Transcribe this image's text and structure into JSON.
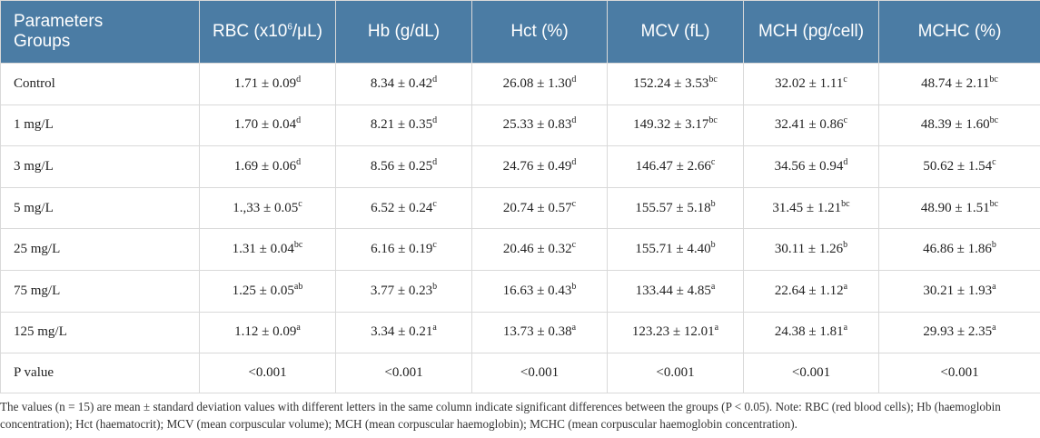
{
  "header": {
    "first_col_line1": "Parameters",
    "first_col_line2": "Groups",
    "columns": [
      {
        "base": "RBC (x10",
        "sup": "6",
        "tail": "/μL)"
      },
      {
        "base": "Hb (g/dL)",
        "sup": "",
        "tail": ""
      },
      {
        "base": "Hct (%)",
        "sup": "",
        "tail": ""
      },
      {
        "base": "MCV (fL)",
        "sup": "",
        "tail": ""
      },
      {
        "base": "MCH (pg/cell)",
        "sup": "",
        "tail": ""
      },
      {
        "base": "MCHC (%)",
        "sup": "",
        "tail": ""
      }
    ]
  },
  "rows": [
    {
      "group": "Control",
      "cells": [
        {
          "v": "1.71 ± 0.09",
          "s": "d"
        },
        {
          "v": "8.34 ± 0.42",
          "s": "d"
        },
        {
          "v": "26.08 ± 1.30",
          "s": "d"
        },
        {
          "v": "152.24 ± 3.53",
          "s": "bc"
        },
        {
          "v": "32.02 ± 1.11",
          "s": "c"
        },
        {
          "v": "48.74 ± 2.11",
          "s": "bc"
        }
      ]
    },
    {
      "group": "1 mg/L",
      "cells": [
        {
          "v": "1.70 ± 0.04",
          "s": "d"
        },
        {
          "v": "8.21 ± 0.35",
          "s": "d"
        },
        {
          "v": "25.33 ± 0.83",
          "s": "d"
        },
        {
          "v": "149.32 ± 3.17",
          "s": "bc"
        },
        {
          "v": "32.41 ± 0.86",
          "s": "c"
        },
        {
          "v": "48.39 ± 1.60",
          "s": "bc"
        }
      ]
    },
    {
      "group": "3 mg/L",
      "cells": [
        {
          "v": "1.69 ± 0.06",
          "s": "d"
        },
        {
          "v": "8.56 ± 0.25",
          "s": "d"
        },
        {
          "v": "24.76 ± 0.49",
          "s": "d"
        },
        {
          "v": "146.47 ± 2.66",
          "s": "c"
        },
        {
          "v": "34.56 ± 0.94",
          "s": "d"
        },
        {
          "v": "50.62 ± 1.54",
          "s": "c"
        }
      ]
    },
    {
      "group": "5 mg/L",
      "cells": [
        {
          "v": "1.,33 ± 0.05",
          "s": "c"
        },
        {
          "v": "6.52 ± 0.24",
          "s": "c"
        },
        {
          "v": "20.74 ± 0.57",
          "s": "c"
        },
        {
          "v": "155.57 ± 5.18",
          "s": "b"
        },
        {
          "v": "31.45 ± 1.21",
          "s": "bc"
        },
        {
          "v": "48.90 ± 1.51",
          "s": "bc"
        }
      ]
    },
    {
      "group": "25 mg/L",
      "cells": [
        {
          "v": "1.31 ± 0.04",
          "s": "bc"
        },
        {
          "v": "6.16 ± 0.19",
          "s": "c"
        },
        {
          "v": "20.46 ± 0.32",
          "s": "c"
        },
        {
          "v": "155.71 ± 4.40",
          "s": "b"
        },
        {
          "v": "30.11 ± 1.26",
          "s": "b"
        },
        {
          "v": "46.86 ± 1.86",
          "s": "b"
        }
      ]
    },
    {
      "group": "75 mg/L",
      "cells": [
        {
          "v": "1.25 ± 0.05",
          "s": "ab"
        },
        {
          "v": "3.77 ± 0.23",
          "s": "b"
        },
        {
          "v": "16.63 ± 0.43",
          "s": "b"
        },
        {
          "v": "133.44 ± 4.85",
          "s": "a"
        },
        {
          "v": "22.64 ± 1.12",
          "s": "a"
        },
        {
          "v": "30.21 ± 1.93",
          "s": "a"
        }
      ]
    },
    {
      "group": "125 mg/L",
      "cells": [
        {
          "v": "1.12 ± 0.09",
          "s": "a"
        },
        {
          "v": "3.34 ± 0.21",
          "s": "a"
        },
        {
          "v": "13.73 ± 0.38",
          "s": "a"
        },
        {
          "v": "123.23 ± 12.01",
          "s": "a"
        },
        {
          "v": "24.38 ± 1.81",
          "s": "a"
        },
        {
          "v": "29.93 ± 2.35",
          "s": "a"
        }
      ]
    },
    {
      "group": "P value",
      "cells": [
        {
          "v": "<0.001",
          "s": ""
        },
        {
          "v": "<0.001",
          "s": ""
        },
        {
          "v": "<0.001",
          "s": ""
        },
        {
          "v": "<0.001",
          "s": ""
        },
        {
          "v": "<0.001",
          "s": ""
        },
        {
          "v": "<0.001",
          "s": ""
        }
      ]
    }
  ],
  "footnote": "The values (n = 15) are mean ± standard deviation values with different letters in the same column indicate significant differences between the groups (P < 0.05). Note: RBC (red blood cells); Hb (haemoglobin concentration); Hct (haematocrit); MCV (mean corpuscular volume); MCH (mean corpuscular haemoglobin); MCHC (mean corpuscular haemoglobin concentration).",
  "colors": {
    "header_bg": "#4b7ca4",
    "header_text": "#ffffff",
    "border": "#d9d9d9"
  }
}
